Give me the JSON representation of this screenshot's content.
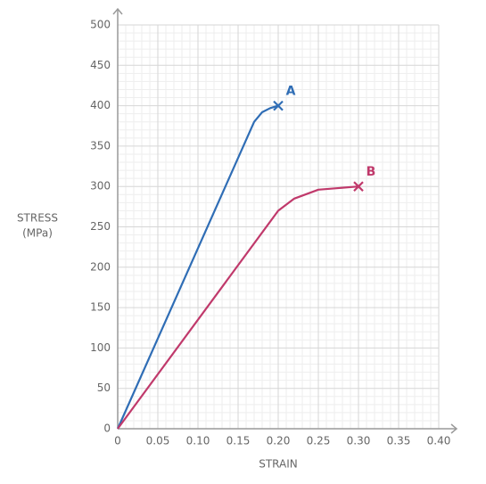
{
  "chart_data": {
    "type": "line",
    "xlabel": "STRAIN",
    "ylabel": [
      "STRESS",
      "(MPa)"
    ],
    "xlim": [
      0,
      0.4
    ],
    "ylim": [
      0,
      500
    ],
    "xticks": [
      0,
      0.05,
      {
        "value": 0.1,
        "label": "0.10"
      },
      0.15,
      {
        "value": 0.2,
        "label": "0.20"
      },
      0.25,
      {
        "value": 0.3,
        "label": "0.30"
      },
      0.35,
      {
        "value": 0.4,
        "label": "0.40"
      }
    ],
    "yticks": [
      0,
      50,
      100,
      150,
      200,
      250,
      300,
      350,
      400,
      450,
      500
    ],
    "grid": true,
    "minor_divisions": 5,
    "series": [
      {
        "name": "A",
        "color": "#2f6db5",
        "x": [
          0,
          0.17,
          0.18,
          0.19,
          0.2
        ],
        "values": [
          0,
          380,
          392,
          397,
          400
        ]
      },
      {
        "name": "B",
        "color": "#c0396b",
        "x": [
          0,
          0.2,
          0.22,
          0.25,
          0.3
        ],
        "values": [
          0,
          270,
          285,
          296,
          300
        ]
      }
    ]
  }
}
